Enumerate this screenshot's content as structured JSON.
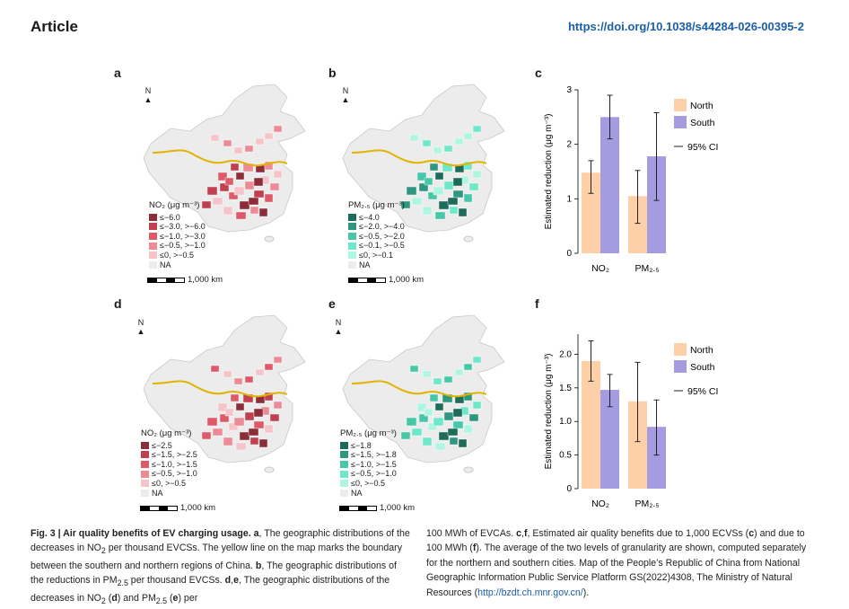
{
  "header": {
    "section": "Article",
    "doi": "https://doi.org/10.1038/s44284-026-00395-2"
  },
  "panels": {
    "a": {
      "letter": "a",
      "north": "N",
      "legend_title": "NO₂ (μg m⁻³)",
      "legend": [
        "≤−6.0",
        "≤−3.0, >−6.0",
        "≤−1.0, >−3.0",
        "≤−0.5, >−1.0",
        "≤0, >−0.5",
        "NA"
      ],
      "scale": "1,000 km"
    },
    "b": {
      "letter": "b",
      "north": "N",
      "legend_title": "PM₂.₅ (μg m⁻³)",
      "legend": [
        "≤−4.0",
        "≤−2.0, >−4.0",
        "≤−0.5, >−2.0",
        "≤−0.1, >−0.5",
        "≤0, >−0.1",
        "NA"
      ],
      "scale": "1,000 km"
    },
    "d": {
      "letter": "d",
      "north": "N",
      "legend_title": "NO₂ (μg m⁻³)",
      "legend": [
        "≤−2.5",
        "≤−1.5, >−2.5",
        "≤−1.0, >−1.5",
        "≤−0.5, >−1.0",
        "≤0, >−0.5",
        "NA"
      ],
      "scale": "1,000 km"
    },
    "e": {
      "letter": "e",
      "north": "N",
      "legend_title": "PM₂.₅ (μg m⁻³)",
      "legend": [
        "≤−1.8",
        "≤−1.5, >−1.8",
        "≤−1.0, >−1.5",
        "≤−0.5, >−1.0",
        "≤0, >−0.5",
        "NA"
      ],
      "scale": "1,000 km"
    },
    "c": {
      "letter": "c"
    },
    "f": {
      "letter": "f"
    }
  },
  "colors": {
    "no2": [
      "#8c2d3a",
      "#c0404f",
      "#de5a68",
      "#ec8a95",
      "#f6c3c8",
      "#ececec"
    ],
    "pm": [
      "#1e6b5c",
      "#2f9680",
      "#45c7a8",
      "#6ee8c9",
      "#aef5e2",
      "#ececec"
    ],
    "north": "#fdd0a8",
    "south": "#a59be0"
  },
  "chart_data": [
    {
      "id": "c",
      "type": "bar",
      "categories": [
        "NO₂",
        "PM₂.₅"
      ],
      "series": [
        {
          "name": "North",
          "values": [
            1.48,
            1.05
          ],
          "ci_low": [
            1.1,
            0.55
          ],
          "ci_high": [
            1.7,
            1.52
          ]
        },
        {
          "name": "South",
          "values": [
            2.5,
            1.78
          ],
          "ci_low": [
            2.1,
            0.97
          ],
          "ci_high": [
            2.9,
            2.58
          ]
        }
      ],
      "ylabel": "Estimated reduction (μg m⁻³)",
      "ylim": [
        0,
        3
      ],
      "yticks": [
        0,
        1,
        2,
        3
      ],
      "legend": [
        "North",
        "South",
        "95% CI"
      ],
      "legend_position": "right"
    },
    {
      "id": "f",
      "type": "bar",
      "categories": [
        "NO₂",
        "PM₂.₅"
      ],
      "series": [
        {
          "name": "North",
          "values": [
            1.9,
            1.3
          ],
          "ci_low": [
            1.6,
            0.7
          ],
          "ci_high": [
            2.2,
            1.88
          ]
        },
        {
          "name": "South",
          "values": [
            1.47,
            0.92
          ],
          "ci_low": [
            1.22,
            0.5
          ],
          "ci_high": [
            1.7,
            1.32
          ]
        }
      ],
      "ylabel": "Estimated reduction (μg m⁻³)",
      "ylim": [
        0,
        2.3
      ],
      "yticks": [
        "0",
        "0.5",
        "1.0",
        "1.5",
        "2.0"
      ],
      "legend": [
        "North",
        "South",
        "95% CI"
      ],
      "legend_position": "right"
    }
  ],
  "caption": {
    "left_html": "<b>Fig. 3 | Air quality benefits of EV charging usage.</b> <b>a</b>, The geographic distributions of the decreases in NO<sub>2</sub> per thousand EVCSs. The yellow line on the map marks the boundary between the southern and northern regions of China. <b>b</b>, The geographic distributions of the reductions in PM<sub>2.5</sub> per thousand EVCSs. <b>d</b>,<b>e</b>, The geographic distributions of the decreases in NO<sub>2</sub> (<b>d</b>) and PM<sub>2.5</sub> (<b>e</b>) per",
    "right_html": "100 MWh of EVCAs. <b>c</b>,<b>f</b>, Estimated air quality benefits due to 1,000 ECVSs (<b>c</b>) and due to 100 MWh (<b>f</b>). The average of the two levels of granularity are shown, computed separately for the northern and southern cities. Map of the People’s Republic of China from National Geographic Information Public Service Platform GS(2022)4308, The Ministry of Natural Resources (<span class=\"link\">http://bzdt.ch.mnr.gov.cn/</span>)."
  }
}
